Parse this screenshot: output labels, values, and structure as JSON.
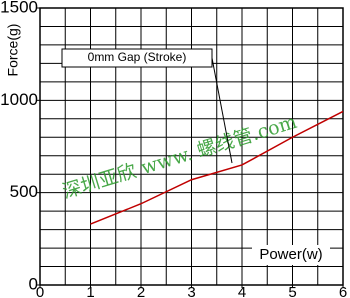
{
  "chart_data": {
    "type": "line",
    "y_label": "Force(g)",
    "x_label": "Power(w)",
    "annotation": "0mm Gap (Stroke)",
    "watermark": "深圳亚欣 www. 螺线管.com",
    "x": [
      1,
      2,
      3,
      4,
      5,
      6
    ],
    "series": [
      {
        "color": "#c00000",
        "values": [
          330,
          440,
          570,
          650,
          800,
          940
        ]
      }
    ],
    "xlim": [
      0,
      6
    ],
    "xticks": [
      0,
      1,
      2,
      3,
      4,
      5,
      6
    ],
    "ylim": [
      0,
      1500
    ],
    "yticks": [
      0,
      500,
      1000,
      1500
    ],
    "xgrid": [
      0.5,
      1,
      1.5,
      2,
      2.5,
      3,
      3.5,
      4,
      4.5,
      5,
      5.5
    ],
    "ygrid": [
      100,
      200,
      300,
      400,
      500,
      600,
      700,
      800,
      900,
      1000,
      1100,
      1200,
      1300,
      1400
    ],
    "grid": true
  }
}
